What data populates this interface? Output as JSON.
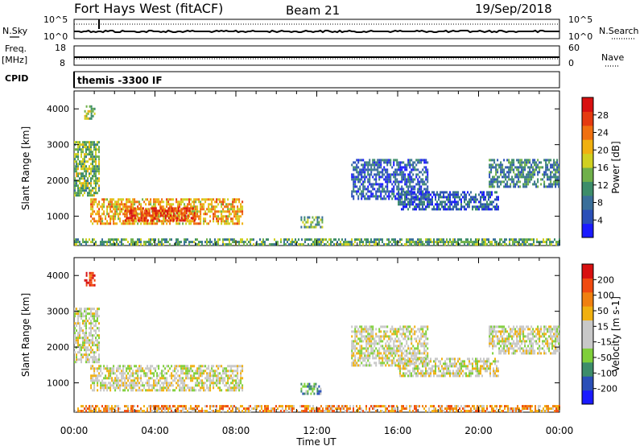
{
  "header": {
    "title": "Fort Hays West (fitACF)",
    "beam": "Beam 21",
    "date": "19/Sep/2018"
  },
  "side_labels": {
    "nsky": "N.Sky",
    "nsearch": "N.Search",
    "freq": "Freq.",
    "mhz": "[MHz]",
    "nave": "Nave",
    "cpid": "CPID"
  },
  "cpid_text": "themis -3300 IF",
  "noise_panel": {
    "left_ticks": [
      "10^5",
      "10^0"
    ],
    "right_ticks": [
      "10^5",
      "10^0"
    ]
  },
  "freq_panel": {
    "left_ticks": [
      "18",
      "8"
    ],
    "right_ticks": [
      "60",
      "0"
    ]
  },
  "x_axis": {
    "label": "Time UT",
    "ticks": [
      "00:00",
      "04:00",
      "08:00",
      "12:00",
      "16:00",
      "20:00",
      "00:00"
    ]
  },
  "chart_data": [
    {
      "type": "heatmap",
      "name": "power",
      "ylabel": "Slant Range [km]",
      "yticks": [
        1000,
        2000,
        3000,
        4000
      ],
      "ylim": [
        180,
        4500
      ],
      "xlim": [
        0,
        24
      ],
      "colorbar": {
        "label": "Power [dB]",
        "ticks": [
          "4",
          "8",
          "12",
          "16",
          "20",
          "24",
          "28"
        ],
        "colors": [
          "#1a1aff",
          "#2a4fb8",
          "#3a6f9a",
          "#3d8d6a",
          "#6fb04a",
          "#d0d020",
          "#f0b010",
          "#f07010",
          "#e53a10",
          "#d81010"
        ]
      },
      "regions": [
        {
          "t0": 0.8,
          "t1": 8.3,
          "r0": 800,
          "r1": 1500,
          "level": 0.65
        },
        {
          "t0": 2.5,
          "t1": 6.0,
          "r0": 900,
          "r1": 1250,
          "level": 0.85
        },
        {
          "t0": 0.0,
          "t1": 1.2,
          "r0": 1550,
          "r1": 3100,
          "level": 0.45
        },
        {
          "t0": 0.5,
          "t1": 1.0,
          "r0": 3700,
          "r1": 4100,
          "level": 0.5
        },
        {
          "t0": 11.2,
          "t1": 12.3,
          "r0": 700,
          "r1": 1000,
          "level": 0.4
        },
        {
          "t0": 13.7,
          "t1": 17.5,
          "r0": 1500,
          "r1": 2600,
          "level": 0.2
        },
        {
          "t0": 16.0,
          "t1": 21.0,
          "r0": 1200,
          "r1": 1700,
          "level": 0.2
        },
        {
          "t0": 20.5,
          "t1": 24.0,
          "r0": 1800,
          "r1": 2600,
          "level": 0.3
        },
        {
          "t0": 0.0,
          "t1": 24.0,
          "r0": 200,
          "r1": 380,
          "level": 0.4
        }
      ]
    },
    {
      "type": "heatmap",
      "name": "velocity",
      "ylabel": "Slant Range [km]",
      "yticks": [
        1000,
        2000,
        3000,
        4000
      ],
      "ylim": [
        180,
        4500
      ],
      "xlim": [
        0,
        24
      ],
      "colorbar": {
        "label": "Velocity [m s-1]",
        "ticks": [
          "200",
          "100",
          "50",
          "15",
          "-15",
          "-50",
          "-100",
          "-200"
        ],
        "colors": [
          "#1a1aff",
          "#2a4fb8",
          "#3d8d6a",
          "#7fcf3a",
          "#c8c8c8",
          "#c8c8c8",
          "#f0b010",
          "#f08010",
          "#f04a10",
          "#d81010"
        ]
      },
      "regions": [
        {
          "t0": 0.8,
          "t1": 8.3,
          "r0": 800,
          "r1": 1500,
          "level": 0.5
        },
        {
          "t0": 0.0,
          "t1": 1.2,
          "r0": 1550,
          "r1": 3100,
          "level": 0.5
        },
        {
          "t0": 0.5,
          "t1": 1.0,
          "r0": 3700,
          "r1": 4100,
          "level": 0.95
        },
        {
          "t0": 11.2,
          "t1": 12.3,
          "r0": 700,
          "r1": 1000,
          "level": 0.3
        },
        {
          "t0": 13.7,
          "t1": 17.5,
          "r0": 1500,
          "r1": 2600,
          "level": 0.5
        },
        {
          "t0": 16.0,
          "t1": 21.0,
          "r0": 1200,
          "r1": 1700,
          "level": 0.5
        },
        {
          "t0": 20.5,
          "t1": 24.0,
          "r0": 1800,
          "r1": 2600,
          "level": 0.5
        },
        {
          "t0": 0.0,
          "t1": 24.0,
          "r0": 200,
          "r1": 380,
          "level": 0.7
        }
      ]
    }
  ]
}
